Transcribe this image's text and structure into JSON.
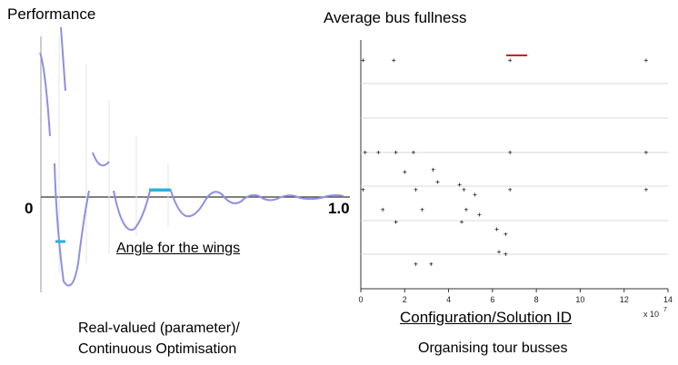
{
  "left_panel": {
    "title": "Performance",
    "x_start_label": "0",
    "x_end_label": "1.0",
    "xlabel": "Angle for the wings",
    "caption_line1": "Real-valued (parameter)/",
    "caption_line2": "Continuous Optimisation"
  },
  "right_panel": {
    "title": "Average bus fullness",
    "xlabel": "Configuration/Solution ID",
    "caption": "Organising tour busses",
    "x_multiplier": "x 10",
    "x_multiplier_exp": "7"
  },
  "chart_data": [
    {
      "type": "line",
      "title": "Performance",
      "xlabel": "Angle for the wings",
      "x_range": [
        0,
        1.0
      ],
      "tick_labels": [
        "0",
        "1.0"
      ],
      "colors": {
        "curve": "#8f8fe0",
        "highlight": "#1fb6d6"
      },
      "series": [
        {
          "x": [
            0.04,
            0.06,
            0.07,
            0.08,
            0.12,
            0.16,
            0.2,
            0.24,
            0.28,
            0.32,
            0.36,
            0.4,
            0.45,
            0.5,
            0.55,
            0.6,
            0.65,
            0.7,
            0.75,
            0.8,
            0.85,
            0.9,
            0.95,
            1.0
          ],
          "values": [
            0.95,
            0.6,
            -0.4,
            -0.95,
            -0.35,
            0.15,
            -0.2,
            0.1,
            -0.55,
            0.2,
            0.1,
            -0.18,
            0.08,
            -0.1,
            0.1,
            -0.06,
            0.05,
            -0.04,
            0.03,
            -0.02,
            0.02,
            -0.01,
            0.01,
            0.0
          ]
        }
      ]
    },
    {
      "type": "scatter",
      "title": "Average bus fullness",
      "xlabel": "Configuration/Solution ID",
      "xlim": [
        0,
        14
      ],
      "x_ticks": [
        0,
        2,
        4,
        6,
        8,
        10,
        12,
        14
      ],
      "x_scale_label": "x 10^7",
      "colors": {
        "points": "#000000",
        "highlight": "#cc2222"
      },
      "series": [
        {
          "name": "",
          "points": [
            [
              0.1,
              0.92
            ],
            [
              1.5,
              0.92
            ],
            [
              6.8,
              0.92
            ],
            [
              13,
              0.92
            ],
            [
              0.2,
              0.55
            ],
            [
              0.8,
              0.55
            ],
            [
              1.6,
              0.55
            ],
            [
              2.4,
              0.55
            ],
            [
              6.8,
              0.55
            ],
            [
              13,
              0.55
            ],
            [
              0.1,
              0.4
            ],
            [
              2.5,
              0.4
            ],
            [
              4.7,
              0.4
            ],
            [
              6.8,
              0.4
            ],
            [
              13,
              0.4
            ],
            [
              2.0,
              0.47
            ],
            [
              3.3,
              0.48
            ],
            [
              3.5,
              0.43
            ],
            [
              4.5,
              0.42
            ],
            [
              5.2,
              0.38
            ],
            [
              1.0,
              0.32
            ],
            [
              2.8,
              0.32
            ],
            [
              4.8,
              0.32
            ],
            [
              5.4,
              0.3
            ],
            [
              1.6,
              0.27
            ],
            [
              4.6,
              0.27
            ],
            [
              6.2,
              0.24
            ],
            [
              6.6,
              0.22
            ],
            [
              2.5,
              0.1
            ],
            [
              3.2,
              0.1
            ],
            [
              6.3,
              0.15
            ],
            [
              6.6,
              0.14
            ]
          ]
        }
      ]
    }
  ]
}
